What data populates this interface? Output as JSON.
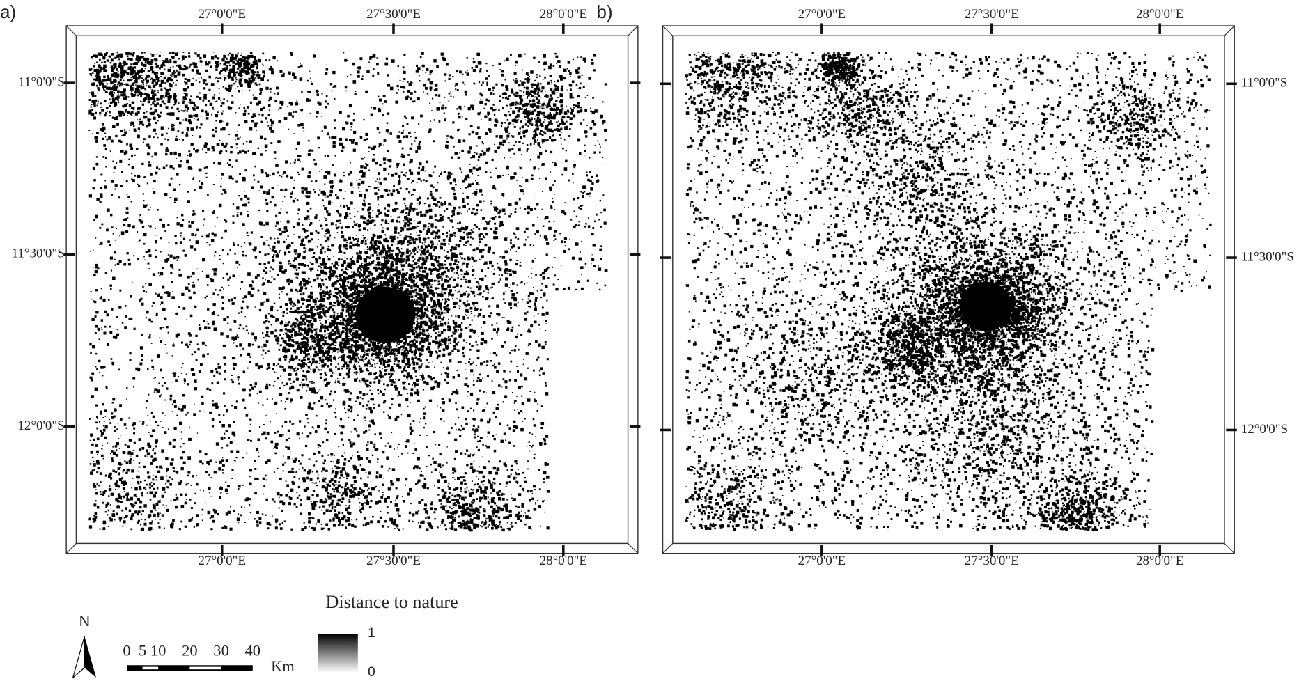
{
  "panels": [
    {
      "label": "a)",
      "lon_top": [
        "27°0'0\"E",
        "27°30'0\"E",
        "28°0'0\"E"
      ],
      "lon_bottom": [
        "27°0'0\"E",
        "27°30'0\"E",
        "28°0'0\"E"
      ],
      "lat": [
        "11°0'0\"S",
        "11°30'0\"S",
        "12°0'0\"S"
      ]
    },
    {
      "label": "b)",
      "lon_top": [
        "27°0'0\"E",
        "27°30'0\"E",
        "28°0'0\"E"
      ],
      "lon_bottom": [
        "27°0'0\"E",
        "27°30'0\"E",
        "28°0'0\"E"
      ],
      "lat": [
        "11°0'0\"S",
        "11°30'0\"S",
        "12°0'0\"S"
      ]
    }
  ],
  "legend": {
    "title": "Distance to nature",
    "max": 1,
    "min": 0
  },
  "north": "N",
  "scale_bar": {
    "ticks": [
      0,
      5,
      10,
      20,
      30,
      40
    ],
    "unit": "Km"
  }
}
